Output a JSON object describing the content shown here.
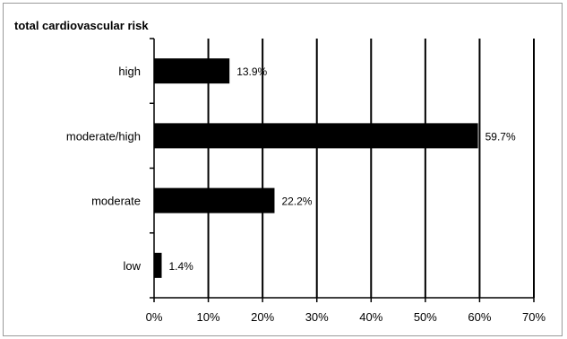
{
  "chart_data": {
    "type": "bar",
    "orientation": "horizontal",
    "title": "total cardiovascular risk",
    "xlabel": "",
    "ylabel": "",
    "categories": [
      "high",
      "moderate/high",
      "moderate",
      "low"
    ],
    "values": [
      13.9,
      59.7,
      22.2,
      1.4
    ],
    "data_labels": [
      "13.9%",
      "59.7%",
      "22.2%",
      "1.4%"
    ],
    "x_ticks": [
      0,
      10,
      20,
      30,
      40,
      50,
      60,
      70
    ],
    "x_tick_labels": [
      "0%",
      "10%",
      "20%",
      "30%",
      "40%",
      "50%",
      "60%",
      "70%"
    ],
    "xlim": [
      0,
      70
    ],
    "grid": "vertical",
    "legend": "none",
    "bar_color": "#000000",
    "grid_color": "#000000"
  }
}
